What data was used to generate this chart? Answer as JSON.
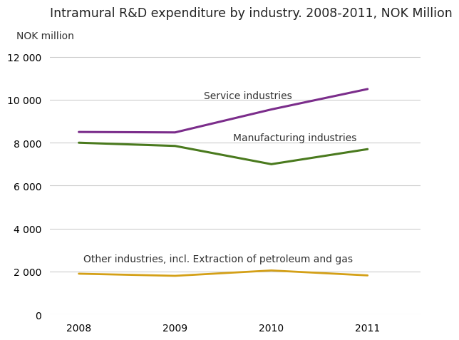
{
  "title": "Intramural R&D expenditure by industry. 2008-2011, NOK Million",
  "ylabel": "NOK million",
  "years": [
    2008,
    2009,
    2010,
    2011
  ],
  "series": [
    {
      "label": "Service industries",
      "values": [
        8500,
        8480,
        9550,
        10500
      ],
      "color": "#7B2D8B",
      "linewidth": 2.2,
      "annotation": "Service industries",
      "ann_x": 2009.3,
      "ann_y": 10200,
      "ann_ha": "left"
    },
    {
      "label": "Manufacturing industries",
      "values": [
        8000,
        7850,
        7000,
        7700
      ],
      "color": "#4A7A1E",
      "linewidth": 2.2,
      "annotation": "Manufacturing industries",
      "ann_x": 2009.6,
      "ann_y": 8250,
      "ann_ha": "left"
    },
    {
      "label": "Other industries, incl. Extraction of petroleum and gas",
      "values": [
        1900,
        1800,
        2050,
        1820
      ],
      "color": "#D4A017",
      "linewidth": 2.0,
      "annotation": "Other industries, incl. Extraction of petroleum and gas",
      "ann_x": 2008.05,
      "ann_y": 2600,
      "ann_ha": "left"
    }
  ],
  "xlim": [
    2007.7,
    2011.55
  ],
  "ylim": [
    0,
    12500
  ],
  "yticks": [
    0,
    2000,
    4000,
    6000,
    8000,
    10000,
    12000
  ],
  "ytick_labels": [
    "0",
    "2 000",
    "4 000",
    "6 000",
    "8 000",
    "10 000",
    "12 000"
  ],
  "xticks": [
    2008,
    2009,
    2010,
    2011
  ],
  "background_color": "#ffffff",
  "grid_color": "#cccccc",
  "title_fontsize": 12.5,
  "ylabel_fontsize": 10,
  "tick_fontsize": 10,
  "annotation_fontsize": 10
}
